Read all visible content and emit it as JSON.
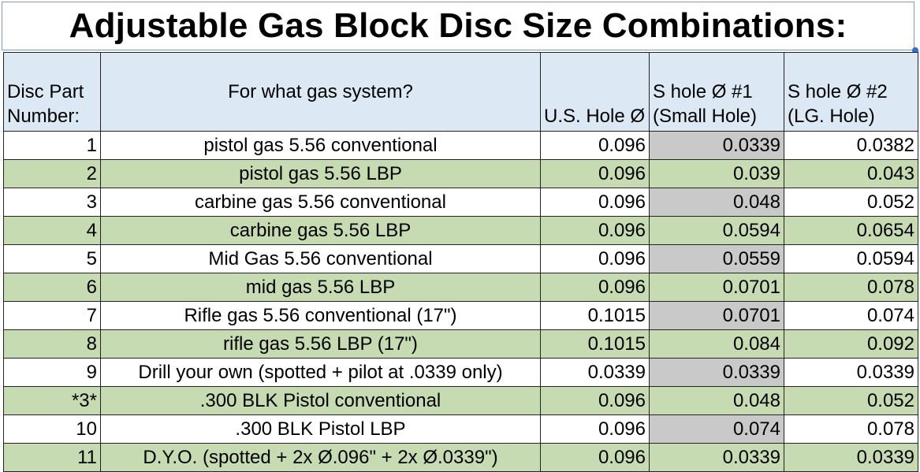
{
  "title": "Adjustable Gas Block Disc Size Combinations:",
  "headers": {
    "part": "Disc Part Number:",
    "system": "For what gas system?",
    "us_hole": "U.S. Hole Ø",
    "s_hole_1": "S hole  Ø #1 (Small Hole)",
    "s_hole_2": "S hole Ø #2 (LG. Hole)"
  },
  "rows": [
    {
      "part": "1",
      "system": "pistol gas 5.56 conventional",
      "us": "0.096",
      "s1": "0.0339",
      "s2": "0.0382"
    },
    {
      "part": "2",
      "system": "pistol gas 5.56 LBP",
      "us": "0.096",
      "s1": "0.039",
      "s2": "0.043"
    },
    {
      "part": "3",
      "system": "carbine gas 5.56 conventional",
      "us": "0.096",
      "s1": "0.048",
      "s2": "0.052"
    },
    {
      "part": "4",
      "system": "carbine gas 5.56 LBP",
      "us": "0.096",
      "s1": "0.0594",
      "s2": "0.0654"
    },
    {
      "part": "5",
      "system": "Mid Gas 5.56 conventional",
      "us": "0.096",
      "s1": "0.0559",
      "s2": "0.0594"
    },
    {
      "part": "6",
      "system": "mid gas 5.56 LBP",
      "us": "0.096",
      "s1": "0.0701",
      "s2": "0.078"
    },
    {
      "part": "7",
      "system": "Rifle gas 5.56 conventional (17\")",
      "us": "0.1015",
      "s1": "0.0701",
      "s2": "0.074"
    },
    {
      "part": "8",
      "system": "rifle gas 5.56 LBP (17\")",
      "us": "0.1015",
      "s1": "0.084",
      "s2": "0.092"
    },
    {
      "part": "9",
      "system": "Drill your own (spotted + pilot at .0339 only)",
      "us": "0.0339",
      "s1": "0.0339",
      "s2": "0.0339"
    },
    {
      "part": "*3*",
      "system": ".300 BLK Pistol conventional",
      "us": "0.096",
      "s1": "0.048",
      "s2": "0.052"
    },
    {
      "part": "10",
      "system": ".300 BLK Pistol LBP",
      "us": "0.096",
      "s1": "0.074",
      "s2": "0.078"
    },
    {
      "part": "11",
      "system": "D.Y.O. (spotted + 2x Ø.096\" + 2x Ø.0339\")",
      "us": "0.096",
      "s1": "0.0339",
      "s2": "0.0339"
    }
  ],
  "colors": {
    "header_bg": "#dde8f5",
    "row_green": "#c6dbb2",
    "row_white": "#ffffff",
    "small_hole_gray": "#c9c9c9",
    "selection_handle": "#2f6fd1"
  }
}
